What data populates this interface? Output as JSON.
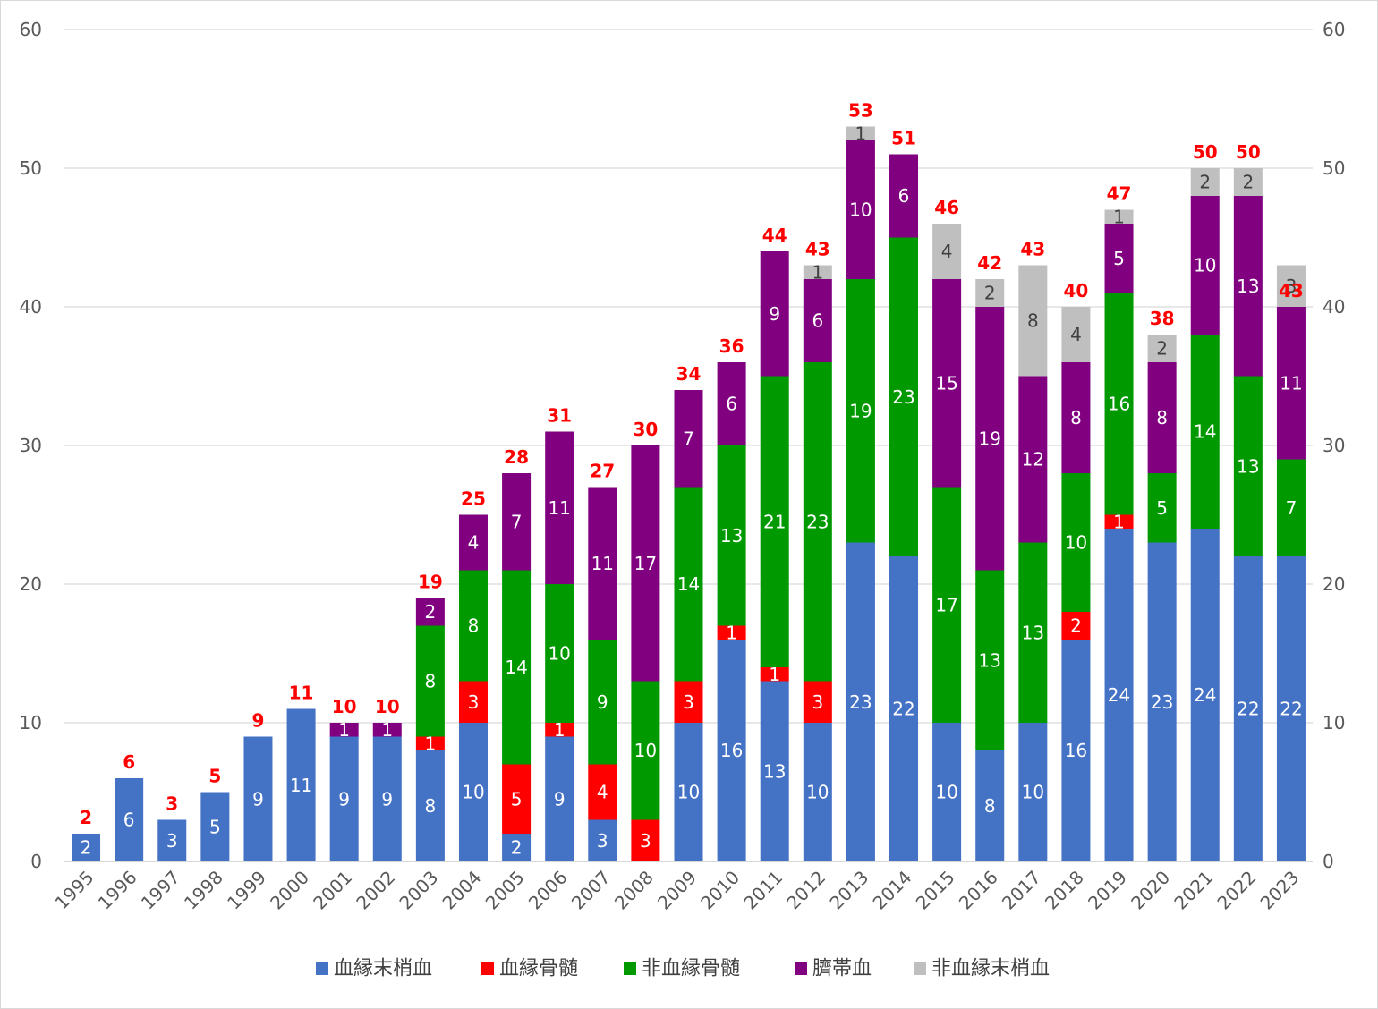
{
  "chart_data": {
    "type": "bar",
    "stacked": true,
    "categories": [
      "1995",
      "1996",
      "1997",
      "1998",
      "1999",
      "2000",
      "2001",
      "2002",
      "2003",
      "2004",
      "2005",
      "2006",
      "2007",
      "2008",
      "2009",
      "2010",
      "2011",
      "2012",
      "2013",
      "2014",
      "2015",
      "2016",
      "2017",
      "2018",
      "2019",
      "2020",
      "2021",
      "2022",
      "2023"
    ],
    "series": [
      {
        "name": "血縁末梢血",
        "color": "#4472C4",
        "values": [
          2,
          6,
          3,
          5,
          9,
          11,
          9,
          9,
          8,
          10,
          2,
          9,
          3,
          0,
          10,
          16,
          13,
          10,
          23,
          22,
          10,
          8,
          10,
          16,
          24,
          23,
          24,
          22,
          22
        ]
      },
      {
        "name": "血縁骨髄",
        "color": "#FF0000",
        "values": [
          0,
          0,
          0,
          0,
          0,
          0,
          0,
          0,
          1,
          3,
          5,
          1,
          4,
          3,
          3,
          1,
          1,
          3,
          0,
          0,
          0,
          0,
          0,
          2,
          1,
          0,
          0,
          0,
          0
        ]
      },
      {
        "name": "非血縁骨髄",
        "color": "#009900",
        "values": [
          0,
          0,
          0,
          0,
          0,
          0,
          0,
          0,
          8,
          8,
          14,
          10,
          9,
          10,
          14,
          13,
          21,
          23,
          19,
          23,
          17,
          13,
          13,
          10,
          16,
          5,
          14,
          13,
          7
        ]
      },
      {
        "name": "臍帯血",
        "color": "#800080",
        "values": [
          0,
          0,
          0,
          0,
          0,
          0,
          1,
          1,
          2,
          4,
          7,
          11,
          11,
          17,
          7,
          6,
          9,
          6,
          10,
          6,
          15,
          19,
          12,
          8,
          5,
          8,
          10,
          13,
          11
        ]
      },
      {
        "name": "非血縁末梢血",
        "color": "#BFBFBF",
        "values": [
          0,
          0,
          0,
          0,
          0,
          0,
          0,
          0,
          0,
          0,
          0,
          0,
          0,
          0,
          0,
          0,
          0,
          1,
          1,
          0,
          4,
          2,
          8,
          4,
          1,
          2,
          2,
          2,
          3
        ]
      }
    ],
    "totals": [
      2,
      6,
      3,
      5,
      9,
      11,
      10,
      10,
      19,
      25,
      28,
      31,
      27,
      30,
      34,
      36,
      44,
      43,
      53,
      51,
      46,
      42,
      43,
      40,
      47,
      38,
      50,
      50,
      43
    ],
    "total_label_color": "#FF0000",
    "title": "",
    "xlabel": "",
    "ylabel": "",
    "ylim": [
      0,
      60
    ],
    "yticks": [
      0,
      10,
      20,
      30,
      40,
      50,
      60
    ],
    "secondary_yticks": [
      0,
      10,
      20,
      30,
      40,
      50,
      60
    ],
    "grid": true,
    "legend": "bottom"
  }
}
